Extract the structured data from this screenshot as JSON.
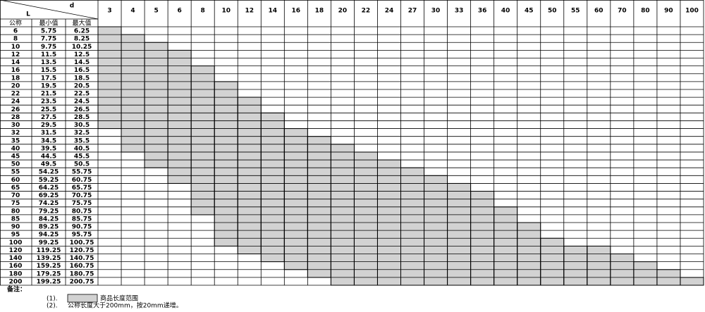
{
  "header": {
    "d_label": "d",
    "l_label": "L",
    "col_nominal": "公称",
    "col_min": "最小值",
    "col_max": "最大值"
  },
  "table": {
    "d": [
      3,
      4,
      5,
      6,
      8,
      10,
      12,
      14,
      16,
      18,
      20,
      22,
      24,
      27,
      30,
      33,
      36,
      40,
      45,
      50,
      55,
      60,
      70,
      80,
      90,
      100
    ],
    "rows": [
      [
        6,
        5.75,
        6.25
      ],
      [
        8,
        7.75,
        8.25
      ],
      [
        10,
        9.75,
        10.25
      ],
      [
        12,
        11.5,
        12.5
      ],
      [
        14,
        13.5,
        14.5
      ],
      [
        16,
        15.5,
        16.5
      ],
      [
        18,
        17.5,
        18.5
      ],
      [
        20,
        19.5,
        20.5
      ],
      [
        22,
        21.5,
        22.5
      ],
      [
        24,
        23.5,
        24.5
      ],
      [
        26,
        25.5,
        26.5
      ],
      [
        28,
        27.5,
        28.5
      ],
      [
        30,
        29.5,
        30.5
      ],
      [
        32,
        31.5,
        32.5
      ],
      [
        35,
        34.5,
        35.5
      ],
      [
        40,
        39.5,
        40.5
      ],
      [
        45,
        44.5,
        45.5
      ],
      [
        50,
        49.5,
        50.5
      ],
      [
        55,
        54.25,
        55.75
      ],
      [
        60,
        59.25,
        60.75
      ],
      [
        65,
        64.25,
        65.75
      ],
      [
        70,
        69.25,
        70.75
      ],
      [
        75,
        74.25,
        75.75
      ],
      [
        80,
        79.25,
        80.75
      ],
      [
        85,
        84.25,
        85.75
      ],
      [
        90,
        89.25,
        90.75
      ],
      [
        95,
        94.25,
        95.75
      ],
      [
        100,
        99.25,
        100.75
      ],
      [
        120,
        119.25,
        120.75
      ],
      [
        140,
        139.25,
        140.75
      ],
      [
        160,
        159.25,
        160.75
      ],
      [
        180,
        179.25,
        180.75
      ],
      [
        200,
        199.25,
        200.75
      ]
    ],
    "shaded": [
      [
        6,
        30
      ],
      [
        8,
        40
      ],
      [
        10,
        50
      ],
      [
        12,
        60
      ],
      [
        16,
        80
      ],
      [
        20,
        100
      ],
      [
        24,
        120
      ],
      [
        28,
        140
      ],
      [
        32,
        160
      ],
      [
        35,
        180
      ],
      [
        40,
        200
      ],
      [
        45,
        200
      ],
      [
        50,
        200
      ],
      [
        55,
        200
      ],
      [
        60,
        200
      ],
      [
        65,
        200
      ],
      [
        70,
        200
      ],
      [
        80,
        200
      ],
      [
        90,
        200
      ],
      [
        100,
        200
      ],
      [
        120,
        200
      ],
      [
        120,
        200
      ],
      [
        140,
        200
      ],
      [
        160,
        200
      ],
      [
        180,
        200
      ],
      [
        200,
        200
      ]
    ]
  },
  "notes": {
    "title": "备注：",
    "items": [
      {
        "num": "(1).",
        "text": "商品长度范围"
      },
      {
        "num": "(2).",
        "text": "公称长度大于200mm，按20mm递增。"
      }
    ]
  }
}
